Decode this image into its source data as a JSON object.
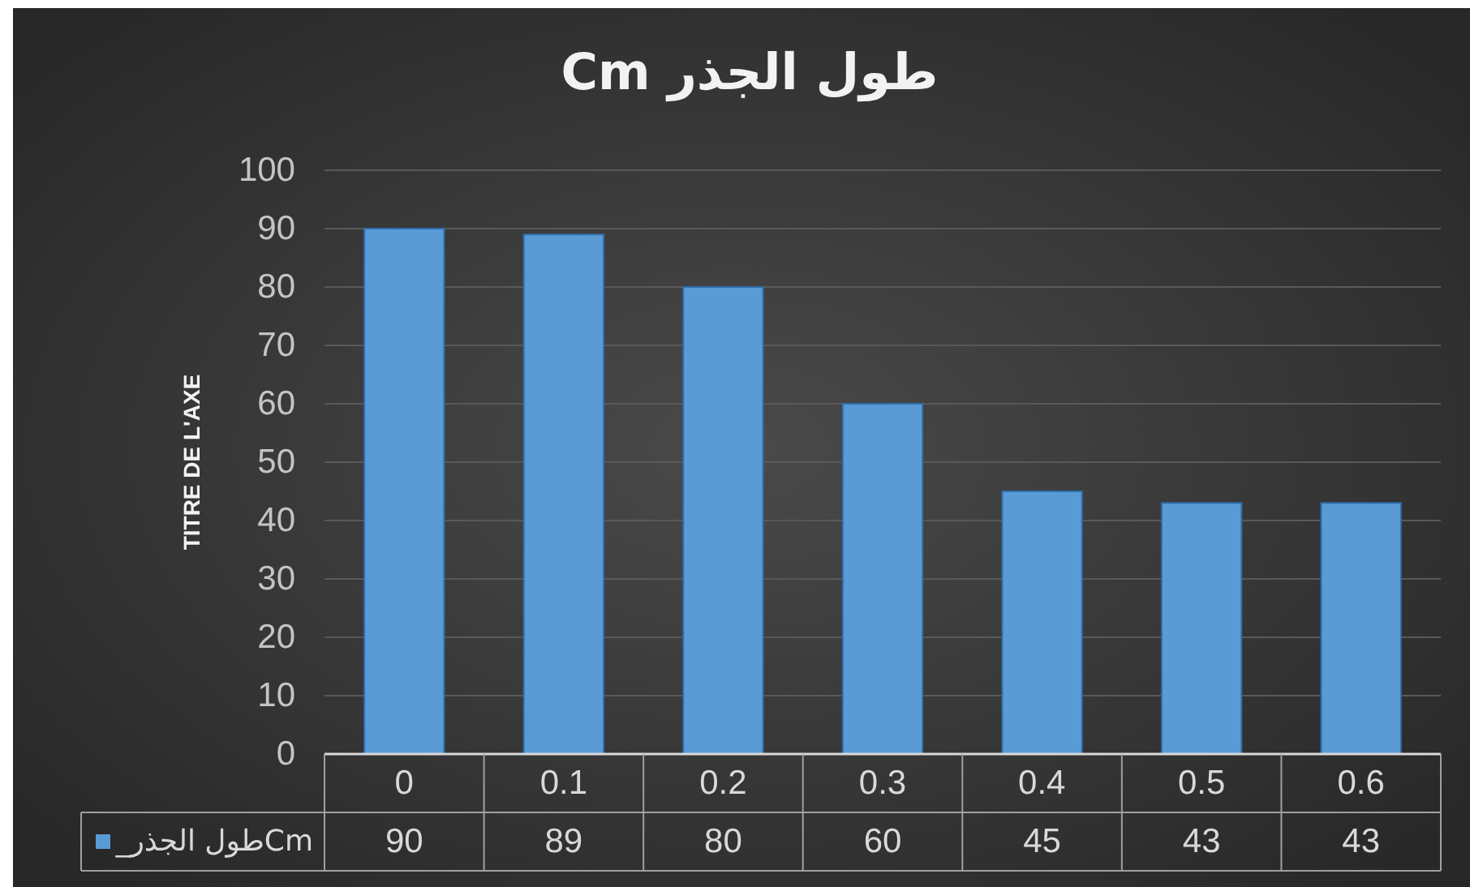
{
  "chart_data": {
    "type": "bar",
    "title": "طول الجذر Cm",
    "ylabel": "TITRE DE L'AXE",
    "categories": [
      "0",
      "0.1",
      "0.2",
      "0.3",
      "0.4",
      "0.5",
      "0.6"
    ],
    "series": [
      {
        "name": "Cmطول الجذر_",
        "color": "#5b9bd5",
        "values": [
          90,
          89,
          80,
          60,
          45,
          43,
          43
        ]
      }
    ],
    "ylim": [
      0,
      100
    ],
    "yticks": [
      0,
      10,
      20,
      30,
      40,
      50,
      60,
      70,
      80,
      90,
      100
    ],
    "grid": "y",
    "legend": "bottom left",
    "data_labels": true
  }
}
